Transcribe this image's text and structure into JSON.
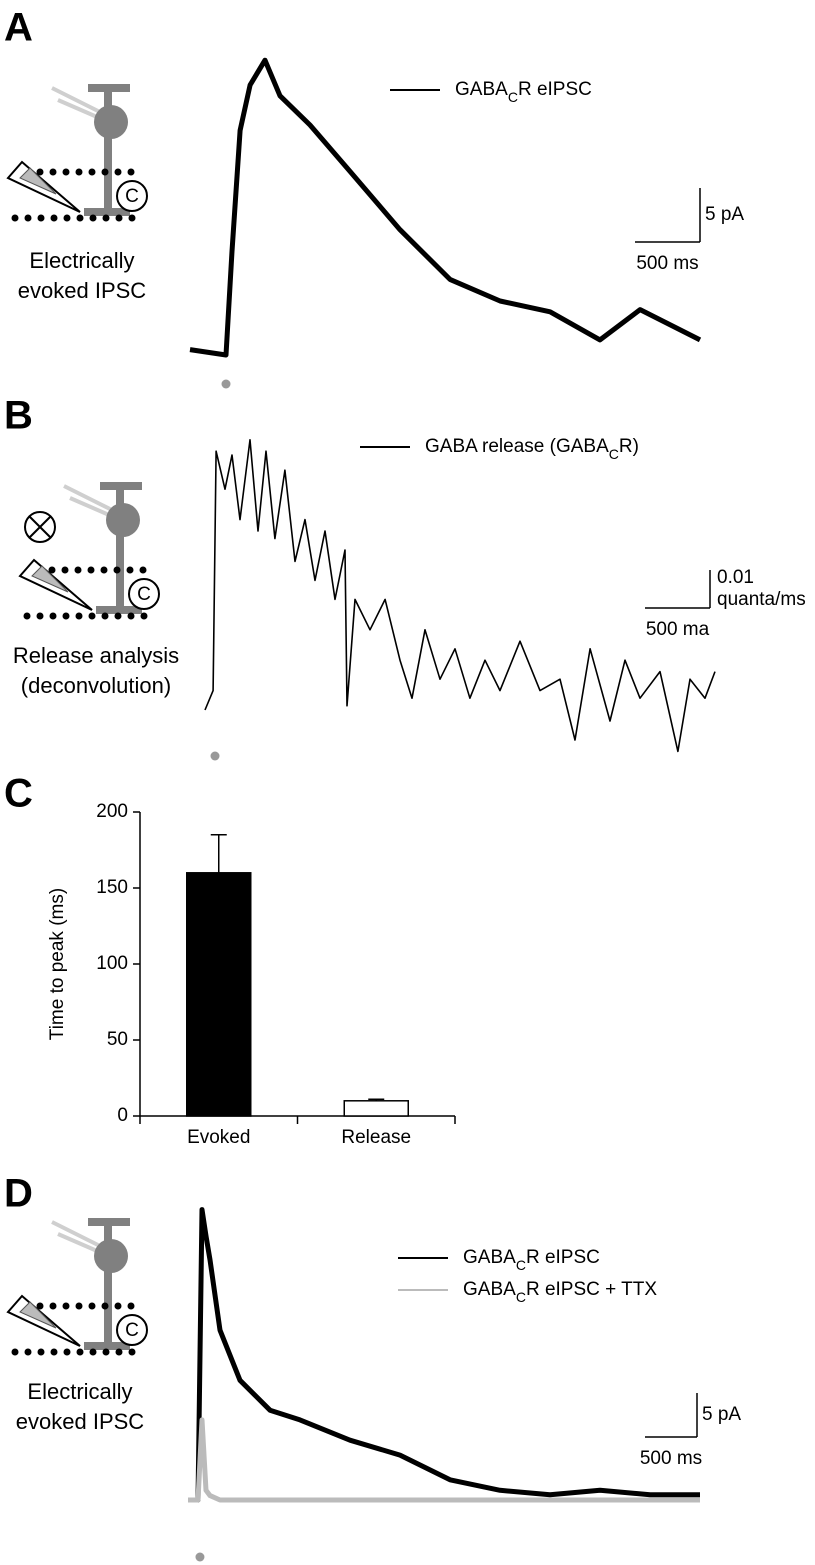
{
  "chart_data": [
    {
      "type": "line",
      "panel_label": "A",
      "schematic_text": [
        "Electrically",
        "evoked IPSC"
      ],
      "schematic_label": "C",
      "x": [
        0,
        277,
        323,
        385,
        462,
        577,
        692,
        923,
        1231,
        1615,
        2000,
        2385,
        2770,
        3154,
        3462,
        3923
      ],
      "series": [
        {
          "name": [
            "GABA",
            "C",
            "R eIPSC"
          ],
          "color": "#000000",
          "values": [
            0.5,
            0,
            9.6,
            20.8,
            25,
            27.3,
            24,
            21.3,
            17,
            11.6,
            7,
            5,
            4,
            1.4,
            4.2,
            1.4
          ]
        }
      ],
      "stimulus": 277,
      "scalebar": {
        "x": {
          "value": 500,
          "label": "500 ms"
        },
        "y": {
          "value": 5,
          "label": "5 pA"
        }
      }
    },
    {
      "type": "line",
      "panel_label": "B",
      "schematic_text": [
        "Release analysis",
        "(deconvolution)"
      ],
      "schematic_label": "C",
      "x": [
        0,
        62,
        85,
        154,
        208,
        269,
        346,
        408,
        469,
        538,
        615,
        692,
        769,
        846,
        923,
        1000,
        1077,
        1092,
        1154,
        1269,
        1385,
        1500,
        1592,
        1692,
        1808,
        1923,
        2038,
        2154,
        2269,
        2423,
        2577,
        2731,
        2846,
        2962,
        3115,
        3231,
        3346,
        3500,
        3638,
        3731,
        3846,
        3923
      ],
      "series": [
        {
          "name": [
            "GABA release (GABA",
            "C",
            "R)"
          ],
          "color": "#000000",
          "values": [
            0.0079,
            0.013,
            0.076,
            0.066,
            0.075,
            0.058,
            0.079,
            0.055,
            0.076,
            0.053,
            0.071,
            0.047,
            0.058,
            0.042,
            0.055,
            0.037,
            0.05,
            0.009,
            0.037,
            0.029,
            0.037,
            0.021,
            0.011,
            0.029,
            0.016,
            0.024,
            0.011,
            0.021,
            0.013,
            0.026,
            0.013,
            0.016,
            0,
            0.024,
            0.005,
            0.021,
            0.011,
            0.018,
            -0.003,
            0.016,
            0.011,
            0.018
          ]
        }
      ],
      "stimulus": 77,
      "scalebar": {
        "x": {
          "value": 500,
          "label": "500 ma"
        },
        "y": {
          "value": 0.01,
          "label": [
            "0.01",
            "quanta/ms"
          ]
        }
      }
    },
    {
      "type": "bar",
      "panel_label": "C",
      "y_label": "Time to peak (ms)",
      "categories": [
        "Evoked",
        "Release"
      ],
      "values": [
        160,
        10
      ],
      "errors": [
        25,
        1
      ],
      "colors": [
        "#000000",
        "#ffffff"
      ],
      "ylim": [
        0,
        200
      ],
      "yticks": [
        0,
        50,
        100,
        150,
        200
      ]
    },
    {
      "type": "line",
      "panel_label": "D",
      "schematic_text": [
        "Electrically",
        "evoked IPSC"
      ],
      "schematic_label": "C",
      "x": [
        0,
        96,
        135,
        173,
        212,
        308,
        500,
        788,
        1077,
        1558,
        2038,
        2519,
        3000,
        3481,
        3962,
        4442,
        4923
      ],
      "series": [
        {
          "name": [
            "GABA",
            "C",
            "R eIPSC"
          ],
          "color": "#000000",
          "values": [
            0,
            0,
            33,
            30,
            27.3,
            19.3,
            13.6,
            10.2,
            9.1,
            6.8,
            5.1,
            2.3,
            1.1,
            0.6,
            1.1,
            0.6,
            0.6
          ]
        },
        {
          "name": [
            "GABA",
            "C",
            "R eIPSC + TTX"
          ],
          "color": "#bbbbbb",
          "values": [
            0,
            0,
            9.1,
            1.1,
            0.5,
            0,
            0,
            0,
            0,
            0,
            0,
            0,
            0,
            0,
            0,
            0,
            0
          ]
        }
      ],
      "stimulus": 115,
      "scalebar": {
        "x": {
          "value": 500,
          "label": "500 ms"
        },
        "y": {
          "value": 5,
          "label": "5 pA"
        }
      }
    }
  ]
}
